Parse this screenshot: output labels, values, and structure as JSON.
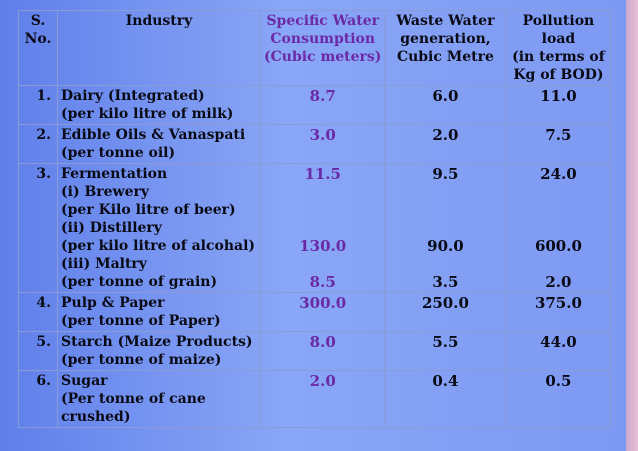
{
  "headers": {
    "sno": [
      "S.",
      "No."
    ],
    "industry": [
      "Industry"
    ],
    "specific_water": [
      "Specific Water",
      "Consumption",
      "(Cubic meters)"
    ],
    "waste_water": [
      "Waste Water",
      "generation,",
      "Cubic Metre"
    ],
    "pollution": [
      "Pollution",
      "load",
      "(in terms of",
      "Kg of BOD)"
    ]
  },
  "rows": [
    {
      "sno": "1.",
      "industry": [
        "Dairy (Integrated)",
        "(per kilo litre of milk)"
      ],
      "sp": "8.7",
      "ww": "6.0",
      "pl": "11.0"
    },
    {
      "sno": "2.",
      "industry": [
        "Edible Oils & Vanaspati",
        "(per tonne oil)"
      ],
      "sp": "3.0",
      "ww": "2.0",
      "pl": "7.5"
    },
    {
      "sno": "3.",
      "industry": [
        "Fermentation",
        "(i) Brewery",
        "(per Kilo litre of beer)",
        "(ii) Distillery",
        "(per kilo litre of alcohal)",
        "(iii) Maltry",
        "(per tonne of grain)"
      ],
      "sub": [
        {
          "sp": "11.5",
          "ww": "9.5",
          "pl": "24.0"
        },
        {
          "sp": "130.0",
          "ww": "90.0",
          "pl": "600.0"
        },
        {
          "sp": "8.5",
          "ww": "3.5",
          "pl": "2.0"
        }
      ]
    },
    {
      "sno": "4.",
      "industry": [
        "Pulp & Paper",
        "(per tonne of Paper)"
      ],
      "sp": "300.0",
      "ww": "250.0",
      "pl": "375.0"
    },
    {
      "sno": "5.",
      "industry": [
        "Starch (Maize Products)",
        "(per tonne of maize)"
      ],
      "sp": "8.0",
      "ww": "5.5",
      "pl": "44.0"
    },
    {
      "sno": "6.",
      "industry": [
        "Sugar",
        "(Per tonne of cane",
        "crushed)"
      ],
      "sp": "2.0",
      "ww": "0.4",
      "pl": "0.5"
    }
  ]
}
